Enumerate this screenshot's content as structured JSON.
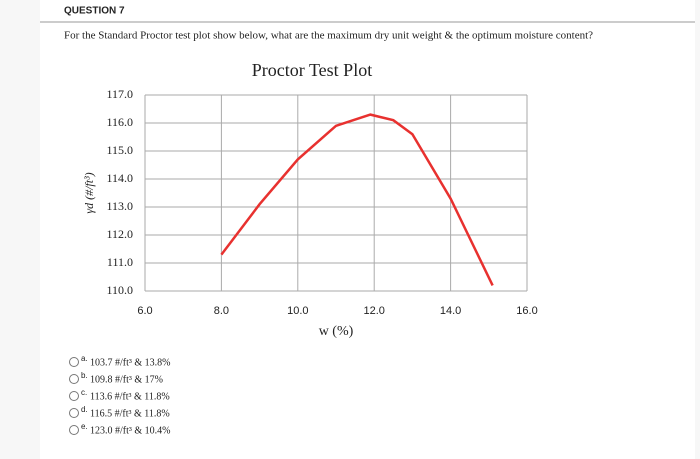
{
  "question": {
    "label": "QUESTION 7",
    "text": "For the Standard Proctor test plot show below, what are the maximum dry unit weight & the optimum moisture content?"
  },
  "chart_data": {
    "type": "line",
    "title": "Proctor Test Plot",
    "x_label": "w (%)",
    "y_label": "γd (#/ft³)",
    "x": [
      8.0,
      9.0,
      10.0,
      11.0,
      11.9,
      12.5,
      13.0,
      14.0,
      15.1
    ],
    "values": [
      111.3,
      113.1,
      114.7,
      115.9,
      116.3,
      116.1,
      115.6,
      113.3,
      110.2
    ],
    "color": "#e8312f",
    "xlim": [
      6,
      16
    ],
    "xticks": [
      {
        "value": 6,
        "label": "6.0"
      },
      {
        "value": 8,
        "label": "8.0"
      },
      {
        "value": 10,
        "label": "10.0"
      },
      {
        "value": 12,
        "label": "12.0"
      },
      {
        "value": 14,
        "label": "14.0"
      },
      {
        "value": 16,
        "label": "16.0"
      }
    ],
    "ylim": [
      110,
      117
    ],
    "yticks": [
      {
        "value": 110,
        "label": "110.0"
      },
      {
        "value": 111,
        "label": "111.0"
      },
      {
        "value": 112,
        "label": "112.0"
      },
      {
        "value": 113,
        "label": "113.0"
      },
      {
        "value": 114,
        "label": "114.0"
      },
      {
        "value": 115,
        "label": "115.0"
      },
      {
        "value": 116,
        "label": "116.0"
      },
      {
        "value": 117,
        "label": "117.0"
      }
    ],
    "grid": true
  },
  "options": [
    {
      "letter": "a.",
      "text": "103.7 #/ft³ & 13.8%"
    },
    {
      "letter": "b.",
      "text": "109.8 #/ft³ & 17%"
    },
    {
      "letter": "c.",
      "text": "113.6 #/ft³ & 11.8%"
    },
    {
      "letter": "d.",
      "text": "116.5 #/ft³ & 11.8%"
    },
    {
      "letter": "e.",
      "text": "123.0 #/ft³ & 10.4%"
    }
  ]
}
